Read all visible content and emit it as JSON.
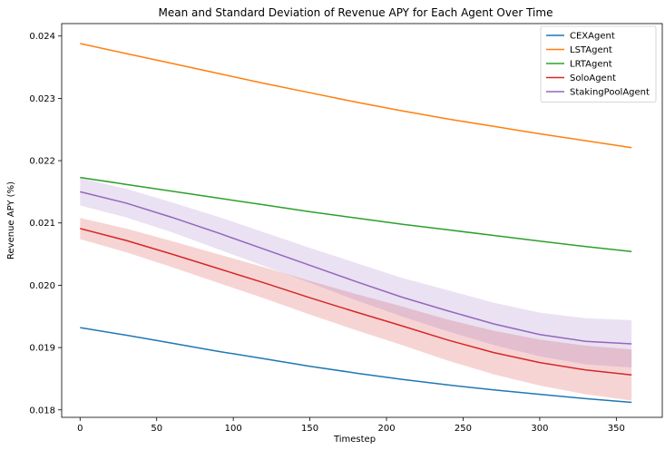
{
  "chart_data": {
    "type": "line",
    "title": "Mean and Standard Deviation of Revenue APY for Each Agent Over Time",
    "xlabel": "Timestep",
    "ylabel": "Revenue APY (%)",
    "xlim": [
      -12,
      380
    ],
    "ylim": [
      0.01788,
      0.0242
    ],
    "x_ticks": [
      0,
      50,
      100,
      150,
      200,
      250,
      300,
      350
    ],
    "x_tick_labels": [
      "0",
      "50",
      "100",
      "150",
      "200",
      "250",
      "300",
      "350"
    ],
    "y_ticks": [
      0.018,
      0.019,
      0.02,
      0.021,
      0.022,
      0.023,
      0.024
    ],
    "y_tick_labels": [
      "0.018",
      "0.019",
      "0.020",
      "0.021",
      "0.022",
      "0.023",
      "0.024"
    ],
    "legend_position": "top-right",
    "grid": false,
    "x": [
      0,
      30,
      60,
      90,
      120,
      150,
      180,
      210,
      240,
      270,
      300,
      330,
      360
    ],
    "series": [
      {
        "name": "CEXAgent",
        "color": "#1f77b4",
        "values": [
          0.01932,
          0.0192,
          0.01907,
          0.01894,
          0.01882,
          0.0187,
          0.01859,
          0.01849,
          0.0184,
          0.01832,
          0.01825,
          0.01818,
          0.01812
        ]
      },
      {
        "name": "LSTAgent",
        "color": "#ff7f0e",
        "values": [
          0.02388,
          0.02372,
          0.02356,
          0.0234,
          0.02324,
          0.02309,
          0.02294,
          0.0228,
          0.02267,
          0.02255,
          0.02243,
          0.02232,
          0.02221
        ]
      },
      {
        "name": "LRTAgent",
        "color": "#2ca02c",
        "values": [
          0.02173,
          0.02162,
          0.02151,
          0.0214,
          0.02129,
          0.02118,
          0.02108,
          0.02098,
          0.02089,
          0.0208,
          0.02071,
          0.02062,
          0.02054
        ]
      },
      {
        "name": "SoloAgent",
        "color": "#d62728",
        "values": [
          0.02091,
          0.02072,
          0.0205,
          0.02027,
          0.02004,
          0.0198,
          0.01957,
          0.01935,
          0.01912,
          0.01892,
          0.01876,
          0.01864,
          0.01856
        ],
        "std": [
          0.00017,
          0.00019,
          0.00021,
          0.00023,
          0.00025,
          0.00027,
          0.00029,
          0.00031,
          0.00033,
          0.00035,
          0.00037,
          0.00039,
          0.00041
        ]
      },
      {
        "name": "StakingPoolAgent",
        "color": "#9467bd",
        "values": [
          0.0215,
          0.02132,
          0.02109,
          0.02084,
          0.02058,
          0.02032,
          0.02006,
          0.01981,
          0.01959,
          0.01938,
          0.01921,
          0.0191,
          0.01906
        ],
        "std": [
          0.00022,
          0.00023,
          0.00024,
          0.00026,
          0.00027,
          0.00028,
          0.0003,
          0.00031,
          0.00033,
          0.00034,
          0.00035,
          0.00037,
          0.00038
        ]
      }
    ]
  }
}
